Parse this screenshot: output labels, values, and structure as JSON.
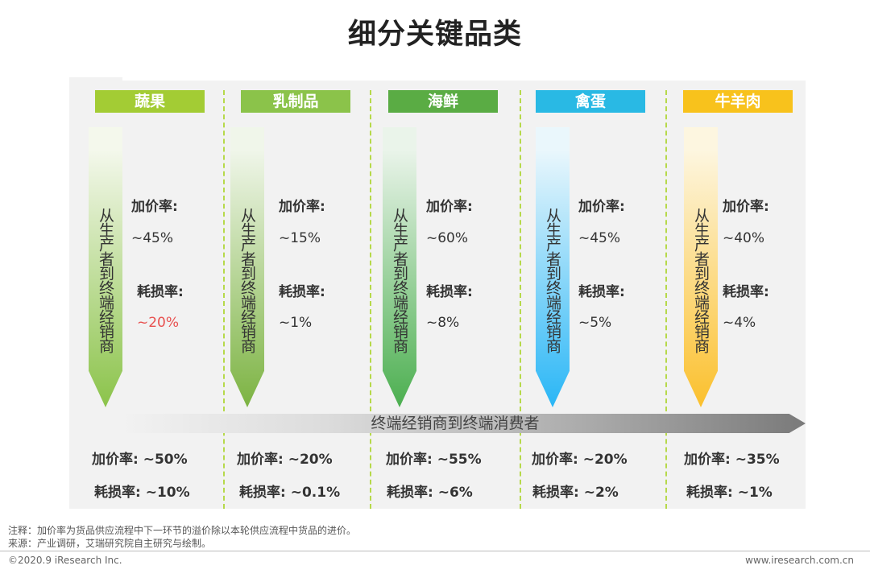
{
  "title": "细分关键品类",
  "categories": [
    {
      "name": "蔬果",
      "header_color": "#a3cc34",
      "arrow_top": "#f4f8ec",
      "arrow_bottom": "#8bc34a",
      "flow_text": "从生产者到终端经销商",
      "markup_label": "加价率:",
      "markup_value": "~45%",
      "loss_label": "耗损率:",
      "loss_value": "~20%",
      "loss_highlight": "#e8504f",
      "bottom_markup": "加价率: ~50%",
      "bottom_loss": "耗损率: ~10%"
    },
    {
      "name": "乳制品",
      "header_color": "#8bc34a",
      "arrow_top": "#f0f6ea",
      "arrow_bottom": "#7cb342",
      "flow_text": "从生产者到终端经销商",
      "markup_label": "加价率:",
      "markup_value": "~15%",
      "loss_label": "耗损率:",
      "loss_value": "~1%",
      "bottom_markup": "加价率: ~20%",
      "bottom_loss": "耗损率: ~0.1%"
    },
    {
      "name": "海鲜",
      "header_color": "#5aac44",
      "arrow_top": "#eaf4ea",
      "arrow_bottom": "#4caf50",
      "flow_text": "从生产者到终端经销商",
      "markup_label": "加价率:",
      "markup_value": "~60%",
      "loss_label": "耗损率:",
      "loss_value": "~8%",
      "bottom_markup": "加价率: ~55%",
      "bottom_loss": "耗损率: ~6%"
    },
    {
      "name": "禽蛋",
      "header_color": "#29b9e4",
      "arrow_top": "#eaf7fc",
      "arrow_bottom": "#29b6f6",
      "flow_text": "从生产者到终端经销商",
      "markup_label": "加价率:",
      "markup_value": "~45%",
      "loss_label": "耗损率:",
      "loss_value": "~5%",
      "bottom_markup": "加价率: ~20%",
      "bottom_loss": "耗损率: ~2%"
    },
    {
      "name": "牛羊肉",
      "header_color": "#f8c21c",
      "arrow_top": "#fdf6e0",
      "arrow_bottom": "#fbc02d",
      "flow_text": "从生产者到终端经销商",
      "markup_label": "加价率:",
      "markup_value": "~40%",
      "loss_label": "耗损率:",
      "loss_value": "~4%",
      "bottom_markup": "加价率: ~35%",
      "bottom_loss": "耗损率: ~1%"
    }
  ],
  "flow_band_text": "终端经销商到终端消费者",
  "divider_color": "#b6d94a",
  "notes": {
    "note": "注释：加价率为货品供应流程中下一环节的溢价除以本轮供应流程中货品的进价。",
    "source": "来源：产业调研，艾瑞研究院自主研究与绘制。"
  },
  "footer": {
    "copyright": "©2020.9 iResearch Inc.",
    "site": "www.iresearch.com.cn"
  }
}
